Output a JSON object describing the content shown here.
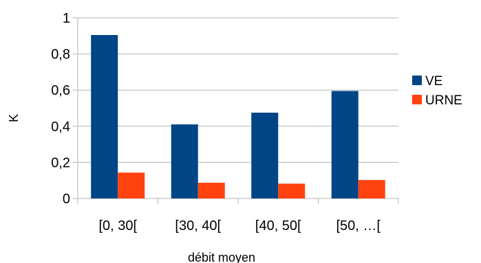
{
  "chart_data": {
    "type": "bar",
    "title": "",
    "xlabel": "débit moyen",
    "ylabel": "K",
    "categories": [
      "[0, 30[",
      "[30, 40[",
      "[40, 50[",
      "[50, …["
    ],
    "series": [
      {
        "name": "VE",
        "color": "#004586",
        "values": [
          0.905,
          0.41,
          0.475,
          0.595
        ]
      },
      {
        "name": "URNE",
        "color": "#ff420e",
        "values": [
          0.143,
          0.087,
          0.082,
          0.102
        ]
      }
    ],
    "ylim": [
      0,
      1
    ],
    "yticks": [
      0,
      0.2,
      0.4,
      0.6,
      0.8,
      1
    ],
    "ytick_labels": [
      "0",
      "0,2",
      "0,4",
      "0,6",
      "0,8",
      "1"
    ],
    "grid": true,
    "legend_position": "right"
  }
}
